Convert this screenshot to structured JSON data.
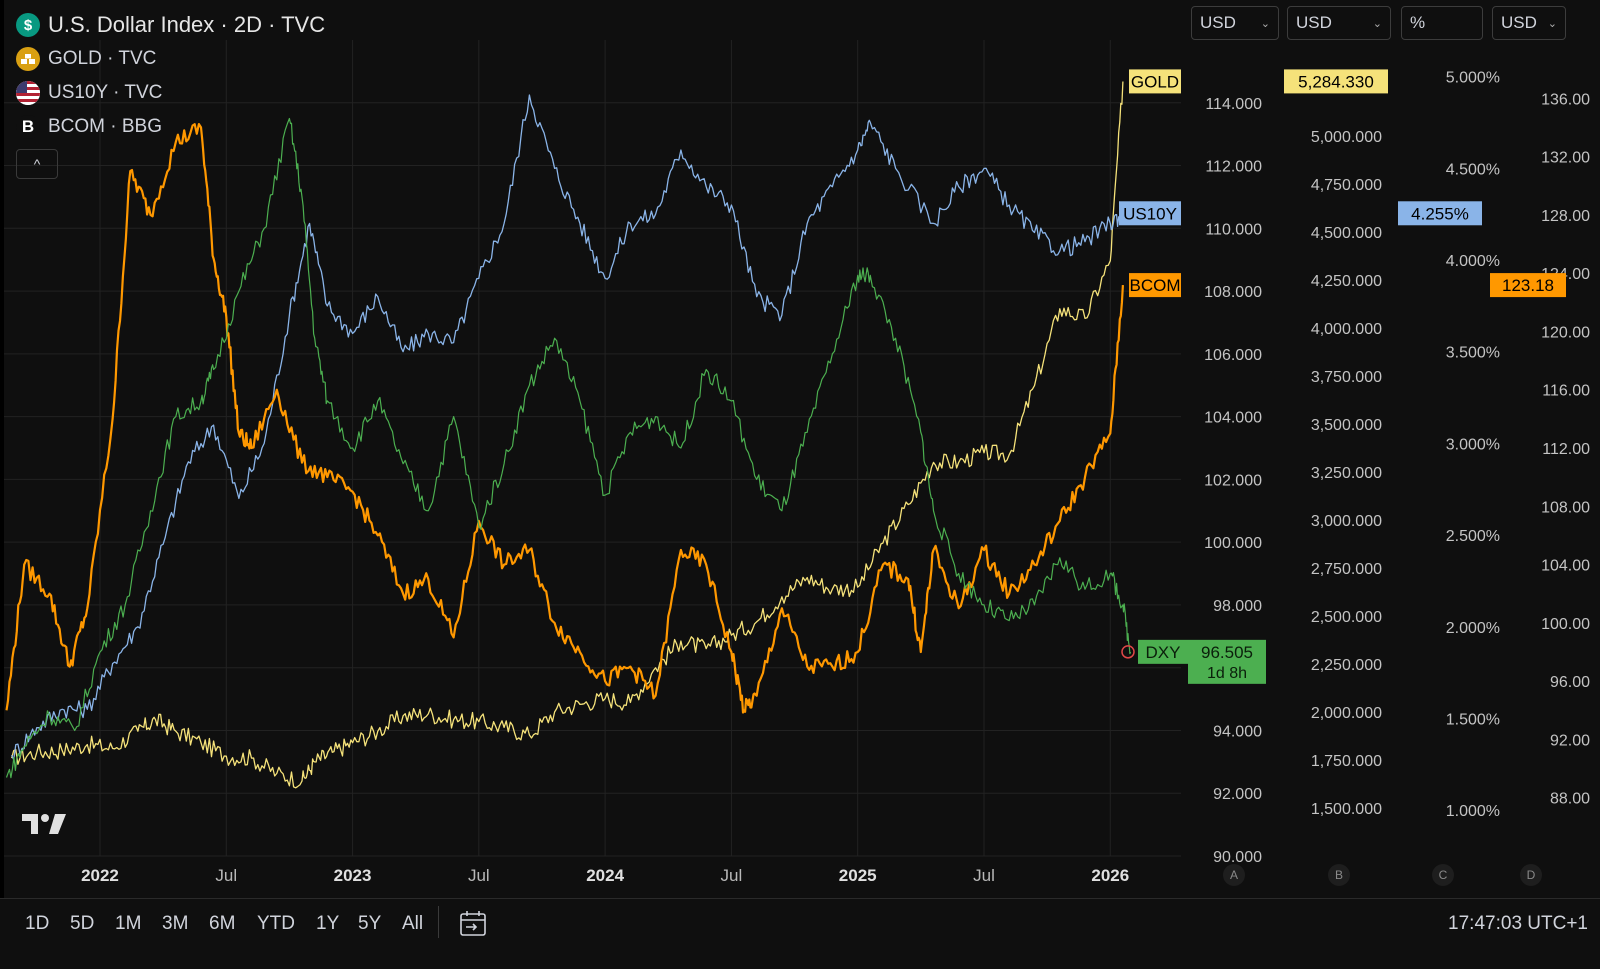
{
  "legend": [
    {
      "icon": "dollar-icon",
      "icon_glyph": "$",
      "icon_color": "#089981",
      "text": "U.S. Dollar Index · 2D · TVC",
      "main": true
    },
    {
      "icon": "gold-bars-icon",
      "icon_glyph": "≡",
      "icon_color": "#d9a012",
      "text": "GOLD · TVC",
      "main": false
    },
    {
      "icon": "us-flag-icon",
      "icon_glyph": "",
      "icon_color": "#b22234",
      "text": "US10Y · TVC",
      "main": false
    },
    {
      "icon": "bloomberg-b-icon",
      "icon_glyph": "B",
      "icon_color": "#0f0f0f",
      "text": "BCOM · BBG",
      "main": false
    }
  ],
  "unit_selectors": [
    {
      "label": "USD",
      "chevron": "⌄"
    },
    {
      "label": "USD",
      "chevron": "⌄"
    },
    {
      "label": "%",
      "chevron": ""
    },
    {
      "label": "USD",
      "chevron": "⌄"
    }
  ],
  "collapse_glyph": "^",
  "axis_letters": [
    "A",
    "B",
    "C",
    "D"
  ],
  "time_ranges": [
    "1D",
    "5D",
    "1M",
    "3M",
    "6M",
    "YTD",
    "1Y",
    "5Y",
    "All"
  ],
  "clock": "17:47:03 UTC+1",
  "colors": {
    "dxy": "#4caf50",
    "gold": "#f5e27a",
    "us10y": "#8ab4e8",
    "bcom": "#ff9800",
    "bg": "#0f0f0f",
    "grid": "#222222"
  },
  "chart_data": {
    "type": "line",
    "title": "U.S. Dollar Index · 2D · TVC",
    "x_ticks": [
      {
        "label": "2022",
        "t": 2022.0,
        "bold": true
      },
      {
        "label": "Jul",
        "t": 2022.5,
        "bold": false
      },
      {
        "label": "2023",
        "t": 2023.0,
        "bold": true
      },
      {
        "label": "Jul",
        "t": 2023.5,
        "bold": false
      },
      {
        "label": "2024",
        "t": 2024.0,
        "bold": true
      },
      {
        "label": "Jul",
        "t": 2024.5,
        "bold": false
      },
      {
        "label": "2025",
        "t": 2025.0,
        "bold": true
      },
      {
        "label": "Jul",
        "t": 2025.5,
        "bold": false
      },
      {
        "label": "2026",
        "t": 2026.0,
        "bold": true
      }
    ],
    "x_range": [
      2021.62,
      2026.28
    ],
    "axes": [
      {
        "id": "A",
        "series": "DXY",
        "ylim": [
          90,
          116
        ],
        "ticks": [
          "90.000",
          "92.000",
          "94.000",
          "96.000",
          "98.000",
          "100.000",
          "102.000",
          "104.000",
          "106.000",
          "108.000",
          "110.000",
          "112.000",
          "114.000"
        ]
      },
      {
        "id": "B",
        "series": "GOLD",
        "ylim": [
          1250,
          5500
        ],
        "ticks": [
          "1,500.000",
          "1,750.000",
          "2,000.000",
          "2,250.000",
          "2,500.000",
          "2,750.000",
          "3,000.000",
          "3,250.000",
          "3,500.000",
          "3,750.000",
          "4,000.000",
          "4,250.000",
          "4,500.000",
          "4,750.000",
          "5,000.000"
        ]
      },
      {
        "id": "C",
        "series": "US10Y",
        "ylim": [
          0.75,
          5.2
        ],
        "ticks": [
          "1.000%",
          "1.500%",
          "2.000%",
          "2.500%",
          "3.000%",
          "3.500%",
          "4.000%",
          "4.500%",
          "5.000%"
        ]
      },
      {
        "id": "D",
        "series": "BCOM",
        "ylim": [
          84,
          140
        ],
        "ticks": [
          "88.00",
          "92.00",
          "96.00",
          "100.00",
          "104.00",
          "108.00",
          "112.00",
          "116.00",
          "120.00",
          "124.00",
          "128.00",
          "132.00",
          "136.00"
        ]
      }
    ],
    "series": [
      {
        "name": "GOLD",
        "axis": "B",
        "color": "#f5e27a",
        "width": 1.3,
        "x": [
          2021.65,
          2021.75,
          2021.85,
          2021.95,
          2022.05,
          2022.15,
          2022.22,
          2022.3,
          2022.4,
          2022.5,
          2022.6,
          2022.7,
          2022.8,
          2022.85,
          2022.92,
          2023.0,
          2023.1,
          2023.2,
          2023.3,
          2023.4,
          2023.5,
          2023.6,
          2023.7,
          2023.8,
          2023.9,
          2024.0,
          2024.1,
          2024.2,
          2024.3,
          2024.4,
          2024.5,
          2024.6,
          2024.7,
          2024.8,
          2024.9,
          2025.0,
          2025.1,
          2025.2,
          2025.3,
          2025.4,
          2025.5,
          2025.6,
          2025.7,
          2025.8,
          2025.9,
          2026.0,
          2026.05
        ],
        "y": [
          1760,
          1790,
          1800,
          1830,
          1810,
          1900,
          1960,
          1900,
          1840,
          1770,
          1760,
          1680,
          1640,
          1740,
          1790,
          1840,
          1900,
          1980,
          1990,
          1960,
          1950,
          1920,
          1880,
          2000,
          2040,
          2070,
          2050,
          2230,
          2370,
          2330,
          2400,
          2470,
          2600,
          2700,
          2640,
          2650,
          2880,
          3080,
          3300,
          3300,
          3350,
          3340,
          3700,
          4100,
          4050,
          4350,
          5284
        ]
      },
      {
        "name": "US10Y",
        "axis": "C",
        "color": "#8ab4e8",
        "width": 1.3,
        "x": [
          2021.65,
          2021.75,
          2021.85,
          2021.95,
          2022.05,
          2022.15,
          2022.25,
          2022.35,
          2022.45,
          2022.55,
          2022.65,
          2022.75,
          2022.83,
          2022.9,
          2023.0,
          2023.1,
          2023.2,
          2023.3,
          2023.4,
          2023.5,
          2023.6,
          2023.7,
          2023.8,
          2023.9,
          2024.0,
          2024.1,
          2024.2,
          2024.3,
          2024.4,
          2024.5,
          2024.6,
          2024.7,
          2024.8,
          2024.9,
          2025.0,
          2025.05,
          2025.15,
          2025.3,
          2025.4,
          2025.5,
          2025.6,
          2025.7,
          2025.8,
          2025.9,
          2026.0,
          2026.05
        ],
        "y": [
          1.3,
          1.45,
          1.55,
          1.55,
          1.8,
          2.0,
          2.45,
          2.9,
          3.1,
          2.7,
          3.0,
          3.7,
          4.2,
          3.75,
          3.6,
          3.8,
          3.5,
          3.6,
          3.55,
          3.9,
          4.2,
          4.9,
          4.5,
          4.2,
          3.9,
          4.2,
          4.25,
          4.6,
          4.4,
          4.3,
          3.8,
          3.7,
          4.2,
          4.4,
          4.6,
          4.75,
          4.5,
          4.2,
          4.4,
          4.5,
          4.3,
          4.15,
          4.05,
          4.1,
          4.2,
          4.255
        ]
      },
      {
        "name": "BCOM",
        "axis": "D",
        "color": "#ff9800",
        "width": 2.2,
        "x": [
          2021.63,
          2021.7,
          2021.8,
          2021.88,
          2021.95,
          2022.05,
          2022.12,
          2022.2,
          2022.3,
          2022.4,
          2022.45,
          2022.5,
          2022.55,
          2022.6,
          2022.7,
          2022.8,
          2022.9,
          2023.0,
          2023.1,
          2023.2,
          2023.3,
          2023.4,
          2023.5,
          2023.6,
          2023.7,
          2023.8,
          2023.9,
          2024.0,
          2024.1,
          2024.2,
          2024.3,
          2024.4,
          2024.5,
          2024.55,
          2024.6,
          2024.7,
          2024.8,
          2024.9,
          2025.0,
          2025.1,
          2025.2,
          2025.25,
          2025.3,
          2025.4,
          2025.5,
          2025.6,
          2025.7,
          2025.8,
          2025.9,
          2026.0,
          2026.05
        ],
        "y": [
          94,
          104,
          102,
          97,
          101,
          114,
          131,
          128,
          133,
          134,
          125,
          121,
          113,
          112,
          116,
          111,
          110,
          109,
          106,
          102,
          103,
          99,
          107,
          104,
          105,
          100,
          98,
          96,
          97,
          95,
          105,
          104,
          98,
          94,
          95,
          101,
          97,
          97,
          98,
          104,
          103,
          98,
          105,
          101,
          105,
          102,
          104,
          107,
          110,
          113,
          123.18
        ]
      },
      {
        "name": "DXY",
        "axis": "A",
        "color": "#4caf50",
        "width": 1.2,
        "x": [
          2021.63,
          2021.7,
          2021.8,
          2021.9,
          2022.0,
          2022.1,
          2022.2,
          2022.3,
          2022.4,
          2022.45,
          2022.55,
          2022.65,
          2022.75,
          2022.8,
          2022.85,
          2022.9,
          2023.0,
          2023.1,
          2023.2,
          2023.3,
          2023.4,
          2023.5,
          2023.6,
          2023.7,
          2023.8,
          2023.9,
          2024.0,
          2024.1,
          2024.2,
          2024.3,
          2024.4,
          2024.5,
          2024.6,
          2024.7,
          2024.8,
          2024.9,
          2025.0,
          2025.05,
          2025.15,
          2025.25,
          2025.3,
          2025.4,
          2025.5,
          2025.6,
          2025.7,
          2025.8,
          2025.9,
          2026.0,
          2026.05,
          2026.08
        ],
        "y": [
          92.5,
          93.5,
          94.5,
          94.0,
          96.5,
          98.0,
          101.0,
          104.0,
          104.5,
          105.5,
          108.0,
          110.0,
          113.5,
          111.0,
          106.5,
          104.5,
          103.0,
          104.5,
          102.5,
          101.0,
          104.0,
          100.5,
          102.5,
          105.0,
          106.5,
          104.5,
          101.5,
          103.5,
          104.0,
          103.0,
          105.5,
          104.5,
          102.0,
          101.0,
          103.5,
          106.0,
          108.5,
          108.5,
          106.5,
          103.5,
          101.0,
          99.0,
          98.0,
          97.5,
          98.0,
          99.5,
          98.5,
          99.0,
          98.0,
          96.505
        ]
      }
    ],
    "last_labels": [
      {
        "name": "GOLD",
        "axis": "B",
        "value": 5284.33,
        "price_text": "5,284.330",
        "fill": "#f5e27a",
        "text_color": "#000000"
      },
      {
        "name": "US10Y",
        "axis": "C",
        "value": 4.255,
        "price_text": "4.255%",
        "fill": "#8ab4e8",
        "text_color": "#000000"
      },
      {
        "name": "BCOM",
        "axis": "D",
        "value": 123.18,
        "price_text": "123.18",
        "fill": "#ff9800",
        "text_color": "#000000"
      },
      {
        "name": "DXY",
        "axis": "A",
        "value": 96.505,
        "price_text": "96.505",
        "sub_text": "1d 8h",
        "fill": "#4caf50",
        "text_color": "#0b1f0b"
      }
    ],
    "grid": true
  }
}
